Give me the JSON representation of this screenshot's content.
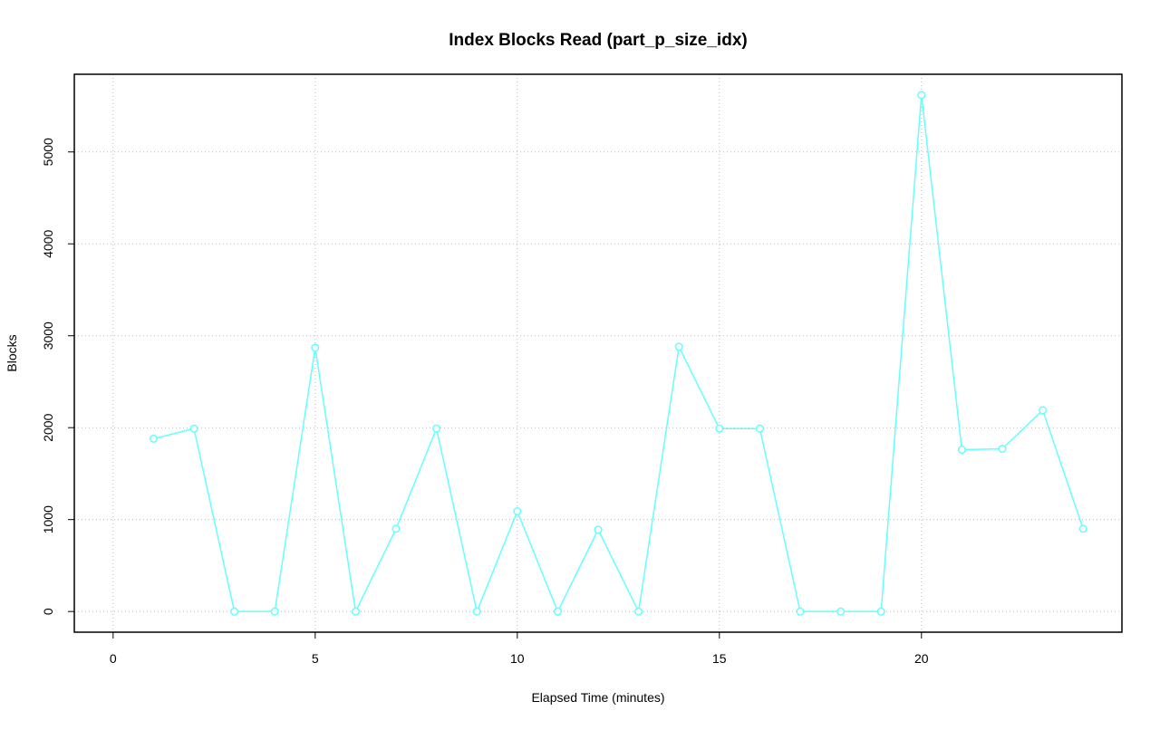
{
  "chart_data": {
    "type": "line",
    "title": "Index Blocks Read (part_p_size_idx)",
    "xlabel": "Elapsed Time (minutes)",
    "ylabel": "Blocks",
    "x": [
      1,
      2,
      3,
      4,
      5,
      6,
      7,
      8,
      9,
      10,
      11,
      12,
      13,
      14,
      15,
      16,
      17,
      18,
      19,
      20,
      21,
      22,
      23,
      24
    ],
    "series": [
      {
        "color": "#66ffff",
        "values": [
          1880,
          1990,
          0,
          0,
          2870,
          0,
          900,
          1990,
          0,
          1090,
          0,
          890,
          0,
          2880,
          1990,
          1990,
          0,
          0,
          0,
          5620,
          1760,
          1770,
          2190,
          900
        ]
      }
    ],
    "xlim": [
      -0.96,
      24.96
    ],
    "ylim": [
      -225,
      5845
    ],
    "xticks": [
      0,
      5,
      10,
      15,
      20
    ],
    "yticks": [
      0,
      1000,
      2000,
      3000,
      4000,
      5000
    ],
    "grid": true
  }
}
